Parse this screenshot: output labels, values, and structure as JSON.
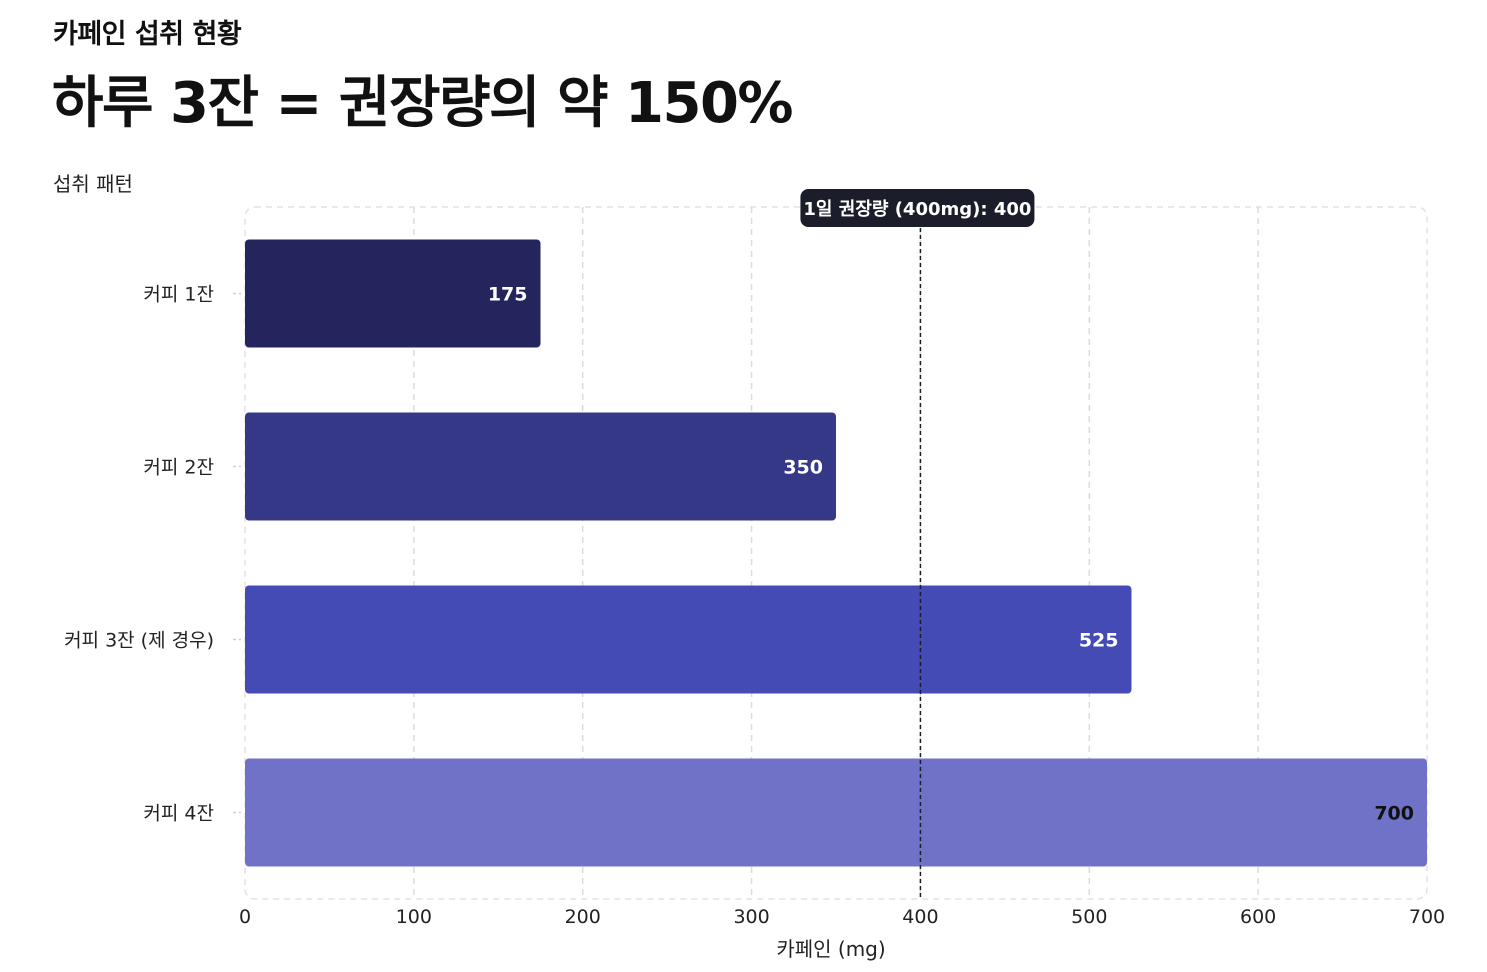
{
  "header": {
    "eyebrow": "카페인 섭취 현황",
    "headline": "하루 3잔 = 권장량의 약 150%"
  },
  "chart_label": "섭취 패턴",
  "chart_data": {
    "type": "bar",
    "orientation": "horizontal",
    "categories": [
      "커피 1잔",
      "커피 2잔",
      "커피 3잔 (제 경우)",
      "커피 4잔"
    ],
    "values": [
      175,
      350,
      525,
      700
    ],
    "value_labels": [
      "175",
      "350",
      "525",
      "700"
    ],
    "colors": [
      "#23255c",
      "#343887",
      "#444bb5",
      "#6f72c7"
    ],
    "label_colors": [
      "#ffffff",
      "#ffffff",
      "#ffffff",
      "#111111"
    ],
    "xlabel": "카페인 (mg)",
    "ylabel": "",
    "xlim": [
      0,
      700
    ],
    "xticks": [
      0,
      100,
      200,
      300,
      400,
      500,
      600,
      700
    ],
    "grid": true,
    "reference_line": {
      "value": 400,
      "label": "1일 권장량 (400mg): 400"
    }
  }
}
